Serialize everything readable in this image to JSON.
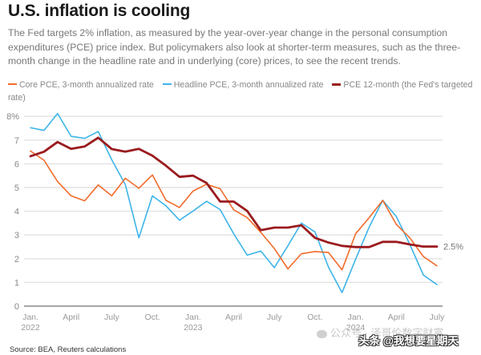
{
  "header": {
    "title": "U.S. inflation is cooling",
    "subtitle": "The Fed targets 2% inflation, as measured by the year-over-year change in the personal consumption expenditures (PCE) price index. But policymakers also look at shorter-term measures, such as the three-month change in the headline rate and in underlying (core) prices, to see the recent trends."
  },
  "legend": [
    {
      "label": "Core PCE, 3-month annualized rate",
      "color": "#f26b2b"
    },
    {
      "label": "Headline PCE, 3-month annualized rate",
      "color": "#3db4e8"
    },
    {
      "label": "PCE 12-month (the Fed's targeted rate)",
      "color": "#9a1b1e"
    }
  ],
  "footer": {
    "source": "Source: BEA, Reuters calculations",
    "watermark_1": "公众号 · 泽哥伦数字财富",
    "watermark_2": "头条 @我想要星期天"
  },
  "chart_data": {
    "type": "line",
    "title": "U.S. inflation is cooling",
    "xlabel": "",
    "ylabel": "",
    "ylim": [
      0,
      8
    ],
    "yticks": [
      0,
      1,
      2,
      3,
      4,
      5,
      6,
      7,
      8
    ],
    "ytick_labels": [
      "0",
      "1",
      "2",
      "3",
      "4",
      "5",
      "6",
      "7",
      "8%"
    ],
    "grid": true,
    "legend_position": "top",
    "x": [
      "2022-01",
      "2022-02",
      "2022-03",
      "2022-04",
      "2022-05",
      "2022-06",
      "2022-07",
      "2022-08",
      "2022-09",
      "2022-10",
      "2022-11",
      "2022-12",
      "2023-01",
      "2023-02",
      "2023-03",
      "2023-04",
      "2023-05",
      "2023-06",
      "2023-07",
      "2023-08",
      "2023-09",
      "2023-10",
      "2023-11",
      "2023-12",
      "2024-01",
      "2024-02",
      "2024-03",
      "2024-04",
      "2024-05",
      "2024-06",
      "2024-07"
    ],
    "xticks": [
      {
        "index": 0,
        "label": "Jan.",
        "sublabel": "2022"
      },
      {
        "index": 3,
        "label": "April",
        "sublabel": ""
      },
      {
        "index": 6,
        "label": "July",
        "sublabel": ""
      },
      {
        "index": 9,
        "label": "Oct.",
        "sublabel": ""
      },
      {
        "index": 12,
        "label": "Jan.",
        "sublabel": "2023"
      },
      {
        "index": 15,
        "label": "April",
        "sublabel": ""
      },
      {
        "index": 18,
        "label": "July",
        "sublabel": ""
      },
      {
        "index": 21,
        "label": "Oct.",
        "sublabel": ""
      },
      {
        "index": 24,
        "label": "Jan.",
        "sublabel": "2024"
      },
      {
        "index": 27,
        "label": "April",
        "sublabel": ""
      },
      {
        "index": 30,
        "label": "July",
        "sublabel": ""
      }
    ],
    "series": [
      {
        "name": "Core PCE, 3-month annualized rate",
        "color": "#f26b2b",
        "values": [
          6.54,
          6.15,
          5.25,
          4.65,
          4.44,
          5.11,
          4.65,
          5.39,
          4.97,
          5.53,
          4.46,
          4.16,
          4.85,
          5.14,
          4.95,
          4.06,
          3.73,
          3.11,
          2.43,
          1.57,
          2.21,
          2.3,
          2.26,
          1.53,
          3.05,
          3.73,
          4.46,
          3.45,
          2.88,
          2.09,
          1.7
        ]
      },
      {
        "name": "Headline PCE, 3-month annualized rate",
        "color": "#3db4e8",
        "values": [
          7.52,
          7.41,
          8.12,
          7.16,
          7.07,
          7.36,
          6.17,
          5.13,
          2.88,
          4.65,
          4.23,
          3.62,
          4.01,
          4.42,
          4.07,
          3.05,
          2.15,
          2.32,
          1.62,
          2.54,
          3.5,
          3.13,
          1.64,
          0.57,
          1.98,
          3.33,
          4.46,
          3.78,
          2.6,
          1.31,
          0.91
        ]
      },
      {
        "name": "PCE 12-month (the Fed's targeted rate)",
        "color": "#9a1b1e",
        "values": [
          6.32,
          6.51,
          6.92,
          6.63,
          6.73,
          7.1,
          6.62,
          6.51,
          6.63,
          6.34,
          5.92,
          5.45,
          5.5,
          5.19,
          4.41,
          4.41,
          4.01,
          3.2,
          3.31,
          3.31,
          3.41,
          2.88,
          2.68,
          2.54,
          2.49,
          2.49,
          2.71,
          2.71,
          2.6,
          2.51,
          2.51
        ]
      }
    ],
    "annotations": [
      {
        "series": "PCE 12-month (the Fed's targeted rate)",
        "index": 30,
        "text": "2.5%"
      }
    ]
  }
}
